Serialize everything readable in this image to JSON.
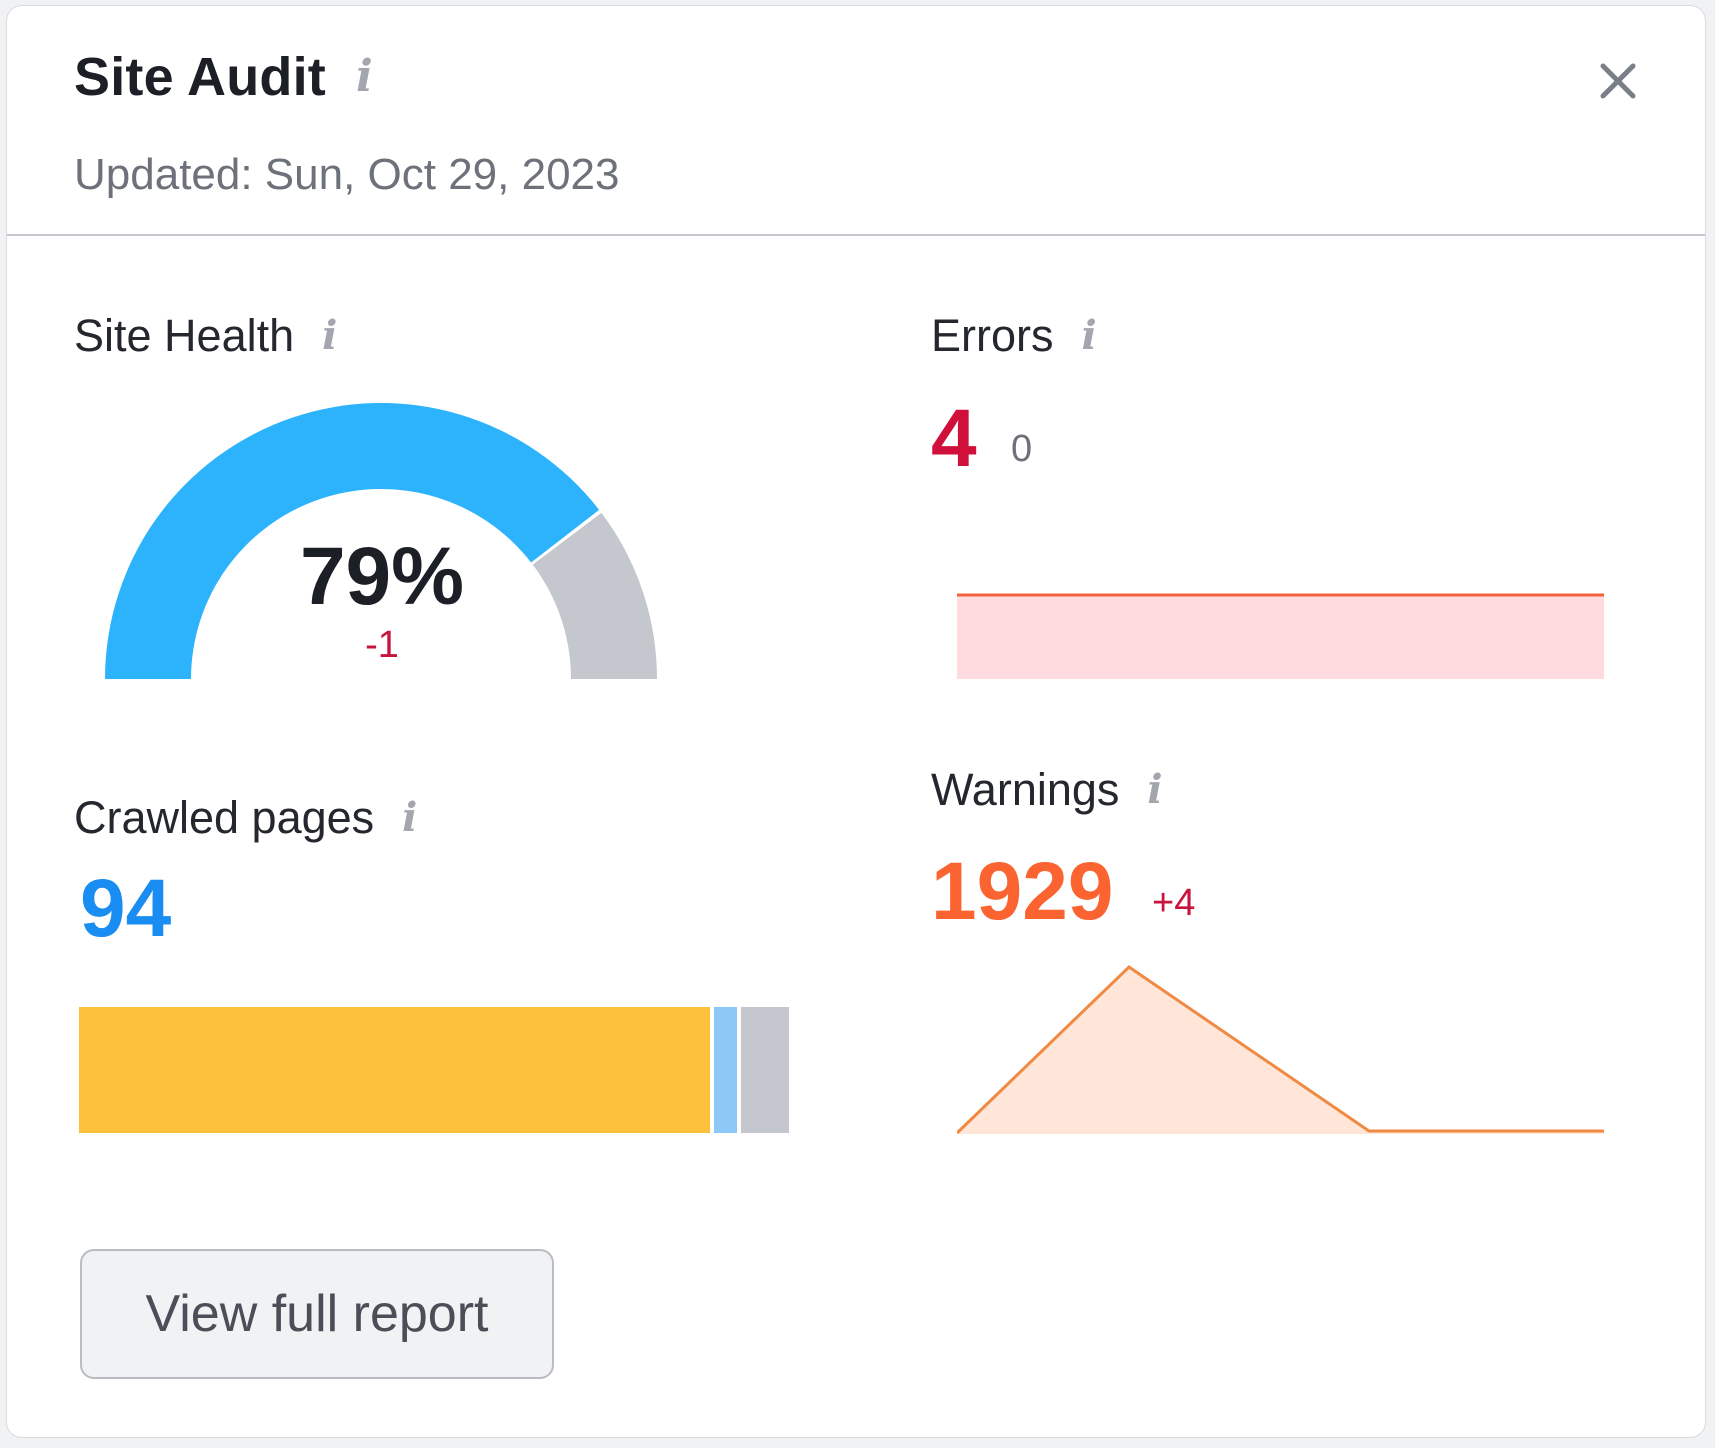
{
  "header": {
    "title": "Site Audit",
    "updated": "Updated: Sun, Oct 29, 2023"
  },
  "site_health": {
    "label": "Site Health",
    "value": "79%",
    "delta": "-1",
    "fraction": 0.79
  },
  "errors": {
    "label": "Errors",
    "value": "4",
    "delta": "0"
  },
  "crawled_pages": {
    "label": "Crawled pages",
    "value": "94"
  },
  "warnings": {
    "label": "Warnings",
    "value": "1929",
    "delta": "+4"
  },
  "actions": {
    "view_report": "View full report"
  },
  "colors": {
    "accent_blue": "#2cb3fc",
    "gauge_rest": "#c5c7cf",
    "error_red": "#d0103a",
    "crawled_blue": "#1a8df2",
    "warning_orange": "#fb6331"
  },
  "icons": {
    "info": "info-icon",
    "close": "close-icon"
  }
}
